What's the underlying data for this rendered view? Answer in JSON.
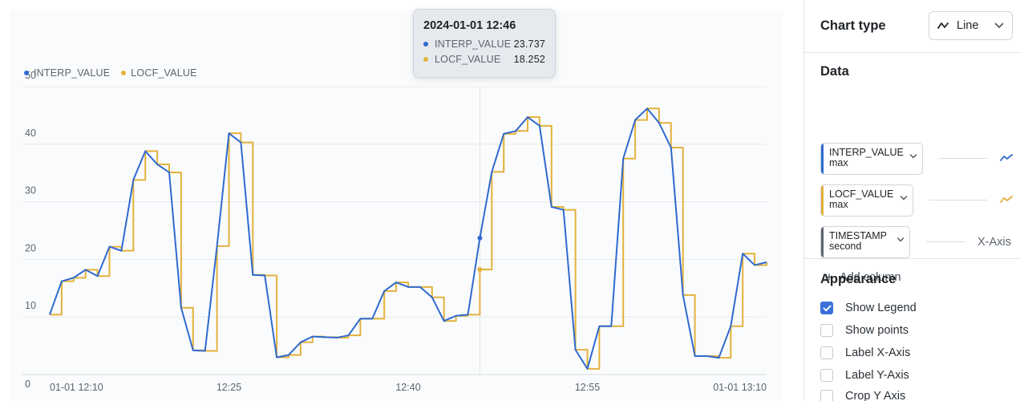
{
  "chart_data": {
    "type": "line",
    "series": [
      {
        "name": "INTERP_VALUE",
        "color": "#2f6ad0",
        "values": [
          10.4,
          16.2,
          16.8,
          18.2,
          17.1,
          22.2,
          21.5,
          33.8,
          38.8,
          36.5,
          35.1,
          11.6,
          4.2,
          4.1,
          22.3,
          41.9,
          40.3,
          17.3,
          17.2,
          3.0,
          3.4,
          5.6,
          6.6,
          6.5,
          6.4,
          6.8,
          9.7,
          9.7,
          14.5,
          16.0,
          15.2,
          15.2,
          13.4,
          9.3,
          10.2,
          10.4,
          23.7,
          35.2,
          41.8,
          42.3,
          44.7,
          43.2,
          29.1,
          28.6,
          4.3,
          1.0,
          8.4,
          8.4,
          37.5,
          44.2,
          46.2,
          43.7,
          39.4,
          13.8,
          3.2,
          3.2,
          2.9,
          8.4,
          21.0,
          19.0,
          19.5
        ]
      },
      {
        "name": "LOCF_VALUE",
        "color": "#e3b23c",
        "values": [
          10.4,
          16.2,
          16.8,
          18.2,
          17.1,
          22.2,
          21.5,
          33.8,
          38.8,
          36.5,
          35.1,
          11.6,
          4.2,
          4.1,
          22.3,
          41.9,
          40.3,
          17.3,
          17.2,
          3.0,
          3.4,
          5.6,
          6.6,
          6.5,
          6.4,
          6.8,
          9.7,
          9.7,
          14.5,
          16.0,
          15.2,
          15.2,
          13.4,
          9.3,
          10.2,
          10.4,
          18.252,
          35.2,
          41.8,
          42.3,
          44.7,
          43.2,
          29.1,
          28.6,
          4.3,
          1.0,
          8.4,
          8.4,
          37.5,
          44.2,
          46.2,
          43.7,
          39.4,
          13.8,
          3.2,
          3.2,
          2.9,
          8.4,
          21.0,
          19.0,
          19.5
        ]
      }
    ],
    "x_range_minutes": [
      0,
      60
    ],
    "ylim": [
      0,
      50
    ],
    "y_ticks": [
      "0",
      "10",
      "20",
      "30",
      "40",
      "50"
    ],
    "x_ticks": [
      {
        "minute": 0,
        "label": "01-01 12:10"
      },
      {
        "minute": 15,
        "label": "12:25"
      },
      {
        "minute": 30,
        "label": "12:40"
      },
      {
        "minute": 45,
        "label": "12:55"
      },
      {
        "minute": 60,
        "label": "01-01 13:10"
      }
    ],
    "grid": true,
    "legend_position": "top-left",
    "hover_minute": 36
  },
  "legend": {
    "items": [
      {
        "label": "INTERP_VALUE",
        "color": "#2f6ad0"
      },
      {
        "label": "LOCF_VALUE",
        "color": "#e3b23c"
      }
    ]
  },
  "tooltip": {
    "title": "2024-01-01 12:46",
    "rows": [
      {
        "label": "INTERP_VALUE",
        "value": "23.737",
        "color": "#2f6ad0"
      },
      {
        "label": "LOCF_VALUE",
        "value": "18.252",
        "color": "#e3b23c"
      }
    ]
  },
  "panel": {
    "chart_type": {
      "title": "Chart type",
      "value": "Line",
      "icon": "line-chart-icon"
    },
    "data": {
      "title": "Data",
      "columns": [
        {
          "name": "INTERP_VALUE",
          "agg": "max",
          "color": "#2f6ad0"
        },
        {
          "name": "LOCF_VALUE",
          "agg": "max",
          "color": "#e3b23c"
        },
        {
          "name": "TIMESTAMP",
          "agg": "second",
          "color": "#5c6470"
        }
      ],
      "x_axis_label": "X-Axis",
      "add_column": "Add column"
    },
    "appearance": {
      "title": "Appearance",
      "options": [
        {
          "label": "Show Legend",
          "checked": true
        },
        {
          "label": "Show points",
          "checked": false
        },
        {
          "label": "Label X-Axis",
          "checked": false
        },
        {
          "label": "Label Y-Axis",
          "checked": false
        },
        {
          "label": "Crop Y Axis",
          "checked": false
        }
      ]
    }
  }
}
